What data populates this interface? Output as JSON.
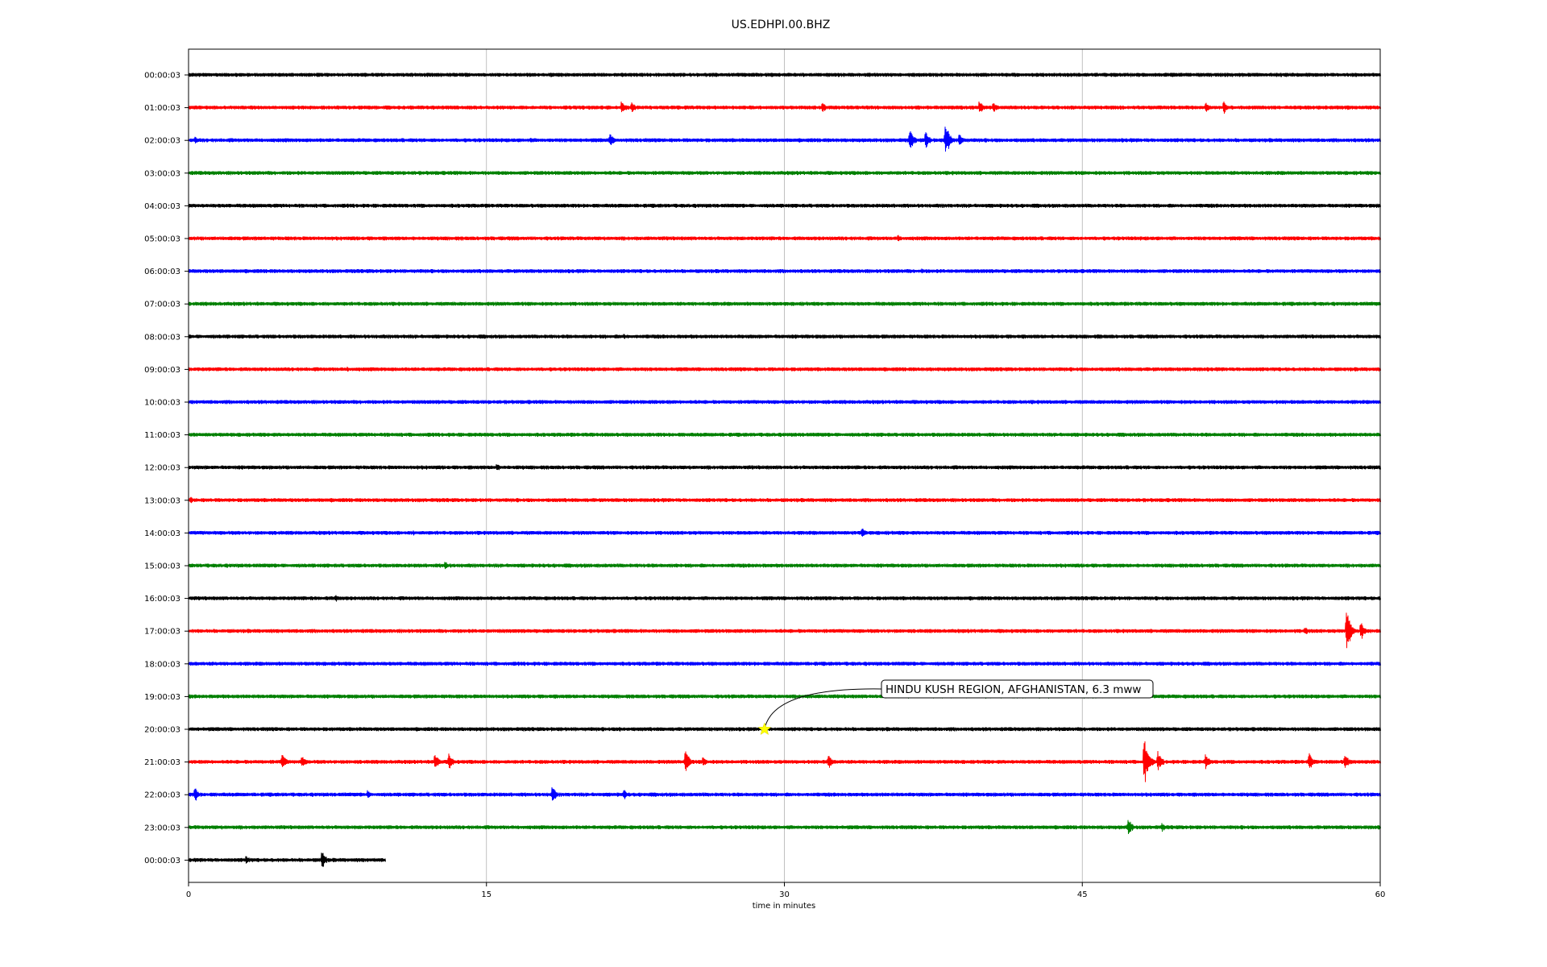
{
  "chart_data": {
    "type": "line",
    "title": "US.EDHPI.00.BHZ",
    "xlabel": "time in minutes",
    "xlim": [
      0,
      60
    ],
    "x_ticks": [
      0,
      15,
      30,
      45,
      60
    ],
    "grid_x": true,
    "grid_y": false,
    "trace_colors": [
      "#000000",
      "#ff0000",
      "#0000ff",
      "#008000"
    ],
    "traces": [
      {
        "label": "00:00:03",
        "duration_min": 60,
        "events": [
          {
            "t": 33.5,
            "a": 3
          },
          {
            "t": 40,
            "a": 3
          }
        ]
      },
      {
        "label": "01:00:03",
        "duration_min": 60,
        "events": [
          {
            "t": 21.8,
            "a": 10
          },
          {
            "t": 22.3,
            "a": 8
          },
          {
            "t": 31.9,
            "a": 8
          },
          {
            "t": 39.8,
            "a": 10
          },
          {
            "t": 40.5,
            "a": 9
          },
          {
            "t": 51.2,
            "a": 9
          },
          {
            "t": 52.1,
            "a": 10
          }
        ]
      },
      {
        "label": "02:00:03",
        "duration_min": 60,
        "events": [
          {
            "t": 0.3,
            "a": 6
          },
          {
            "t": 17.2,
            "a": 4
          },
          {
            "t": 21.2,
            "a": 10
          },
          {
            "t": 36.3,
            "a": 15
          },
          {
            "t": 37.1,
            "a": 13
          },
          {
            "t": 38.1,
            "a": 26
          },
          {
            "t": 38.8,
            "a": 11
          }
        ]
      },
      {
        "label": "03:00:03",
        "duration_min": 60,
        "events": []
      },
      {
        "label": "04:00:03",
        "duration_min": 60,
        "events": []
      },
      {
        "label": "05:00:03",
        "duration_min": 60,
        "events": [
          {
            "t": 35.7,
            "a": 6
          }
        ]
      },
      {
        "label": "06:00:03",
        "duration_min": 60,
        "events": [
          {
            "t": 36.9,
            "a": 4
          }
        ]
      },
      {
        "label": "07:00:03",
        "duration_min": 60,
        "events": []
      },
      {
        "label": "08:00:03",
        "duration_min": 60,
        "events": [
          {
            "t": 21.9,
            "a": 5
          },
          {
            "t": 45.8,
            "a": 4
          }
        ]
      },
      {
        "label": "09:00:03",
        "duration_min": 60,
        "events": [
          {
            "t": 8,
            "a": 4
          }
        ]
      },
      {
        "label": "10:00:03",
        "duration_min": 60,
        "events": []
      },
      {
        "label": "11:00:03",
        "duration_min": 60,
        "events": []
      },
      {
        "label": "12:00:03",
        "duration_min": 60,
        "events": [
          {
            "t": 15.5,
            "a": 6
          }
        ]
      },
      {
        "label": "13:00:03",
        "duration_min": 60,
        "events": [
          {
            "t": 0.1,
            "a": 5
          }
        ]
      },
      {
        "label": "14:00:03",
        "duration_min": 60,
        "events": [
          {
            "t": 11.3,
            "a": 4
          },
          {
            "t": 33.9,
            "a": 8
          }
        ]
      },
      {
        "label": "15:00:03",
        "duration_min": 60,
        "events": [
          {
            "t": 12.9,
            "a": 7
          }
        ]
      },
      {
        "label": "16:00:03",
        "duration_min": 60,
        "events": [
          {
            "t": 7.4,
            "a": 6
          }
        ]
      },
      {
        "label": "17:00:03",
        "duration_min": 60,
        "events": [
          {
            "t": 56.2,
            "a": 7
          },
          {
            "t": 58.3,
            "a": 33
          },
          {
            "t": 59,
            "a": 14
          }
        ]
      },
      {
        "label": "18:00:03",
        "duration_min": 60,
        "events": []
      },
      {
        "label": "19:00:03",
        "duration_min": 60,
        "events": []
      },
      {
        "label": "20:00:03",
        "duration_min": 60,
        "events": [
          {
            "t": 21.7,
            "a": 4
          }
        ]
      },
      {
        "label": "21:00:03",
        "duration_min": 60,
        "events": [
          {
            "t": 4.7,
            "a": 12
          },
          {
            "t": 5.7,
            "a": 9
          },
          {
            "t": 12.4,
            "a": 13
          },
          {
            "t": 13.1,
            "a": 12
          },
          {
            "t": 25,
            "a": 18
          },
          {
            "t": 25.9,
            "a": 8
          },
          {
            "t": 32.2,
            "a": 11
          },
          {
            "t": 48.1,
            "a": 38
          },
          {
            "t": 48.8,
            "a": 14
          },
          {
            "t": 51.2,
            "a": 11
          },
          {
            "t": 56.4,
            "a": 13
          },
          {
            "t": 58.2,
            "a": 12
          }
        ]
      },
      {
        "label": "22:00:03",
        "duration_min": 60,
        "events": [
          {
            "t": 0.3,
            "a": 11
          },
          {
            "t": 9,
            "a": 6
          },
          {
            "t": 18.3,
            "a": 12
          },
          {
            "t": 21.9,
            "a": 8
          }
        ]
      },
      {
        "label": "23:00:03",
        "duration_min": 60,
        "events": [
          {
            "t": 47.3,
            "a": 13
          },
          {
            "t": 49,
            "a": 6
          }
        ]
      },
      {
        "label": "00:00:03",
        "duration_min": 9.9,
        "events": [
          {
            "t": 2.9,
            "a": 7
          },
          {
            "t": 6.7,
            "a": 14
          }
        ]
      }
    ],
    "event_marker": {
      "trace_index": 20,
      "t": 29,
      "color": "#ffff00",
      "shape": "star"
    },
    "annotation": {
      "text": "HINDU KUSH REGION, AFGHANISTAN, 6.3 mww"
    }
  }
}
